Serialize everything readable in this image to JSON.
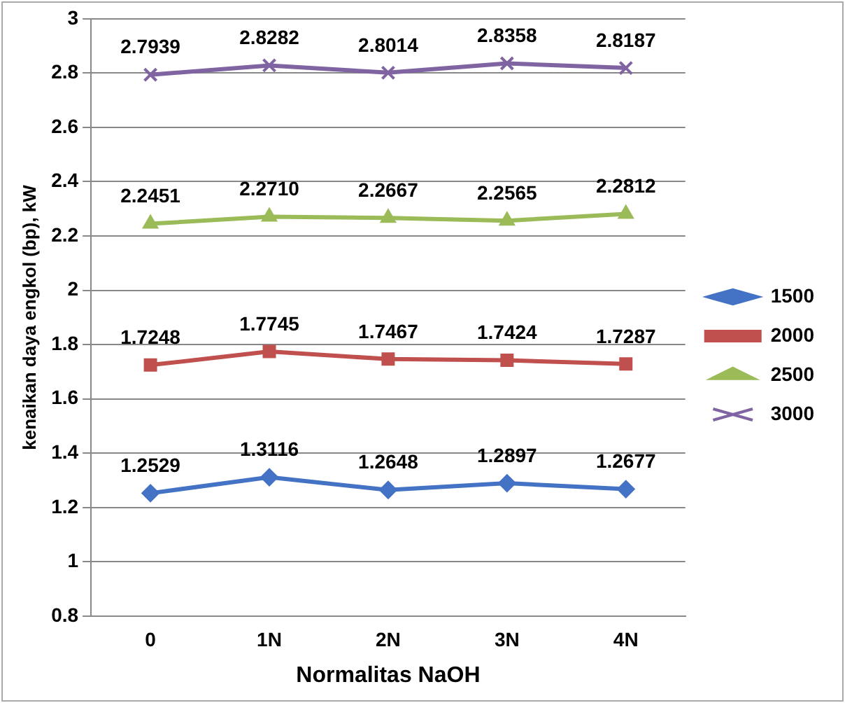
{
  "chart_data": {
    "type": "line",
    "xlabel": "Normalitas NaOH",
    "ylabel": "kenaikan daya engkol (bp), kW",
    "categories": [
      "0",
      "1N",
      "2N",
      "3N",
      "4N"
    ],
    "series": [
      {
        "name": "1500",
        "color": "#4472c4",
        "marker": "diamond",
        "values": [
          1.2529,
          1.3116,
          1.2648,
          1.2897,
          1.2677
        ],
        "value_labels": [
          "1.2529",
          "1.3116",
          "1.2648",
          "1.2897",
          "1.2677"
        ]
      },
      {
        "name": "2000",
        "color": "#c0504d",
        "marker": "square",
        "values": [
          1.7248,
          1.7745,
          1.7467,
          1.7424,
          1.7287
        ],
        "value_labels": [
          "1.7248",
          "1.7745",
          "1.7467",
          "1.7424",
          "1.7287"
        ]
      },
      {
        "name": "2500",
        "color": "#9bbb59",
        "marker": "triangle",
        "values": [
          2.2451,
          2.271,
          2.2667,
          2.2565,
          2.2812
        ],
        "value_labels": [
          "2.2451",
          "2.2710",
          "2.2667",
          "2.2565",
          "2.2812"
        ]
      },
      {
        "name": "3000",
        "color": "#8064a2",
        "marker": "cross",
        "values": [
          2.7939,
          2.8282,
          2.8014,
          2.8358,
          2.8187
        ],
        "value_labels": [
          "2.7939",
          "2.8282",
          "2.8014",
          "2.8358",
          "2.8187"
        ]
      }
    ],
    "ylim": [
      0.8,
      3
    ],
    "yticks": [
      0.8,
      1,
      1.2,
      1.4,
      1.6,
      1.8,
      2,
      2.2,
      2.4,
      2.6,
      2.8,
      3
    ],
    "grid": "y",
    "legend": "right",
    "line_style": "solid"
  }
}
